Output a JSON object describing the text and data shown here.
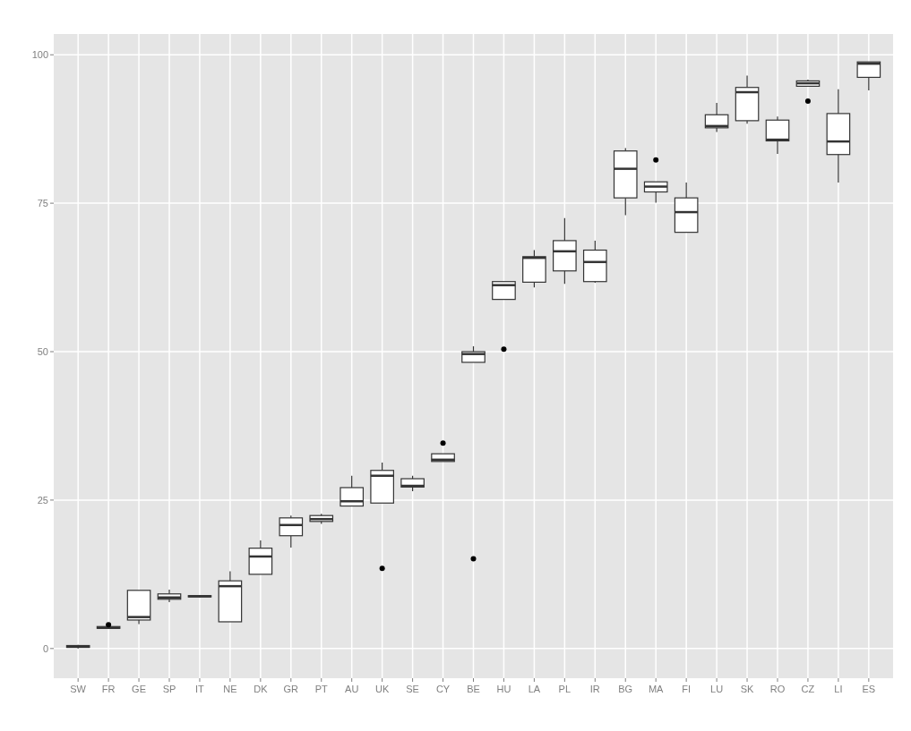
{
  "chart_data": {
    "type": "box",
    "categories": [
      "SW",
      "FR",
      "GE",
      "SP",
      "IT",
      "NE",
      "DK",
      "GR",
      "PT",
      "AU",
      "UK",
      "SE",
      "CY",
      "BE",
      "HU",
      "LA",
      "PL",
      "IR",
      "BG",
      "MA",
      "FI",
      "LU",
      "SK",
      "RO",
      "CZ",
      "LI",
      "ES"
    ],
    "boxes": [
      {
        "low": 0,
        "q1": 0.2,
        "median": 0.3,
        "q3": 0.5,
        "high": 0.6
      },
      {
        "low": 3.3,
        "q1": 3.4,
        "median": 3.5,
        "q3": 3.7,
        "high": 3.8,
        "outliers": [
          4.0
        ]
      },
      {
        "low": 4.1,
        "q1": 4.8,
        "median": 5.3,
        "q3": 9.8,
        "high": 9.8
      },
      {
        "low": 7.8,
        "q1": 8.3,
        "median": 8.6,
        "q3": 9.2,
        "high": 9.9
      },
      {
        "low": 8.6,
        "q1": 8.7,
        "median": 8.8,
        "q3": 8.9,
        "high": 9.0
      },
      {
        "low": 4.5,
        "q1": 4.5,
        "median": 10.5,
        "q3": 11.4,
        "high": 13.0
      },
      {
        "low": 12.5,
        "q1": 12.5,
        "median": 15.5,
        "q3": 16.9,
        "high": 18.2
      },
      {
        "low": 17.0,
        "q1": 19.0,
        "median": 20.8,
        "q3": 22.0,
        "high": 22.4
      },
      {
        "low": 21.0,
        "q1": 21.4,
        "median": 21.8,
        "q3": 22.4,
        "high": 22.7
      },
      {
        "low": 24.0,
        "q1": 24.0,
        "median": 24.8,
        "q3": 27.1,
        "high": 29.1
      },
      {
        "low": 24.5,
        "q1": 24.5,
        "median": 29.1,
        "q3": 30.0,
        "high": 31.3,
        "outliers": [
          13.5
        ]
      },
      {
        "low": 26.5,
        "q1": 27.2,
        "median": 27.4,
        "q3": 28.6,
        "high": 29.1
      },
      {
        "low": 31.5,
        "q1": 31.5,
        "median": 31.8,
        "q3": 32.8,
        "high": 32.8,
        "outliers": [
          34.6
        ]
      },
      {
        "low": 48.2,
        "q1": 48.2,
        "median": 49.6,
        "q3": 50.0,
        "high": 50.9,
        "outliers": [
          15.1
        ]
      },
      {
        "low": 58.8,
        "q1": 58.8,
        "median": 61.2,
        "q3": 61.8,
        "high": 61.8,
        "outliers": [
          50.4
        ]
      },
      {
        "low": 60.8,
        "q1": 61.7,
        "median": 65.8,
        "q3": 66.0,
        "high": 67.1
      },
      {
        "low": 61.4,
        "q1": 63.6,
        "median": 66.9,
        "q3": 68.7,
        "high": 72.5
      },
      {
        "low": 61.6,
        "q1": 61.8,
        "median": 65.1,
        "q3": 67.1,
        "high": 68.7
      },
      {
        "low": 73.0,
        "q1": 75.9,
        "median": 80.8,
        "q3": 83.8,
        "high": 84.3
      },
      {
        "low": 75.1,
        "q1": 76.9,
        "median": 77.8,
        "q3": 78.6,
        "high": 78.6,
        "outliers": [
          82.3
        ]
      },
      {
        "low": 70.1,
        "q1": 70.1,
        "median": 73.5,
        "q3": 75.9,
        "high": 78.5
      },
      {
        "low": 87.0,
        "q1": 87.7,
        "median": 88.0,
        "q3": 89.9,
        "high": 91.9
      },
      {
        "low": 88.4,
        "q1": 88.9,
        "median": 93.7,
        "q3": 94.5,
        "high": 96.5
      },
      {
        "low": 83.3,
        "q1": 85.5,
        "median": 85.7,
        "q3": 89.0,
        "high": 89.6
      },
      {
        "low": 94.7,
        "q1": 94.7,
        "median": 95.2,
        "q3": 95.6,
        "high": 95.8,
        "outliers": [
          92.2
        ]
      },
      {
        "low": 78.5,
        "q1": 83.2,
        "median": 85.4,
        "q3": 90.1,
        "high": 94.2
      },
      {
        "low": 94.0,
        "q1": 96.2,
        "median": 98.5,
        "q3": 98.8,
        "high": 98.8
      }
    ],
    "ylim": [
      -5,
      103.5
    ],
    "yticks": [
      0,
      25,
      50,
      75,
      100
    ],
    "grid": true
  }
}
